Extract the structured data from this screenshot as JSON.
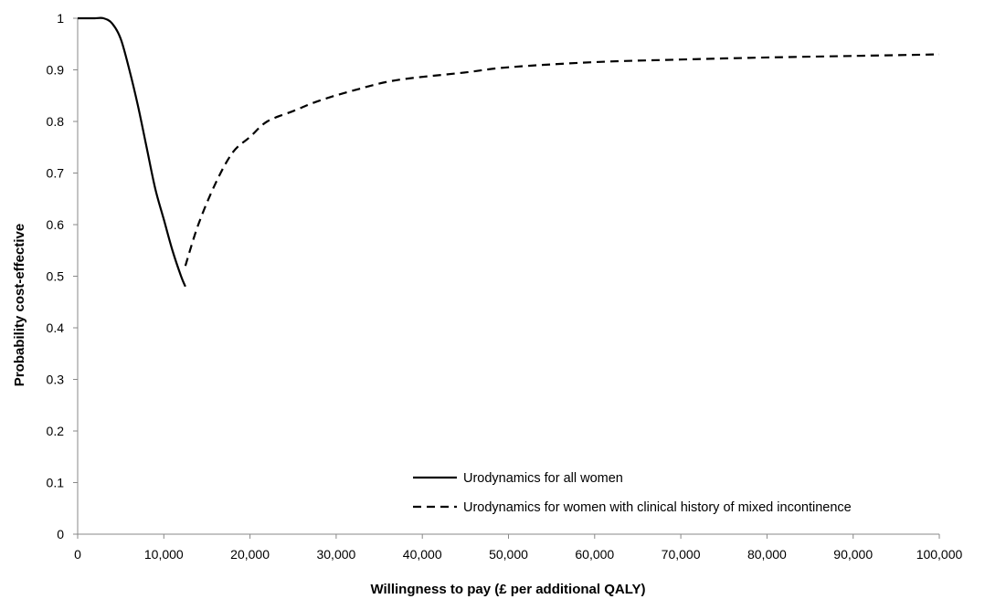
{
  "chart_data": {
    "type": "line",
    "xlabel": "Willingness to pay (£ per additional QALY)",
    "ylabel": "Probability cost-effective",
    "xlim": [
      0,
      100000
    ],
    "ylim": [
      0,
      1
    ],
    "x_ticks": [
      "0",
      "10,000",
      "20,000",
      "30,000",
      "40,000",
      "50,000",
      "60,000",
      "70,000",
      "80,000",
      "90,000",
      "100,000"
    ],
    "y_ticks": [
      "0",
      "0.1",
      "0.2",
      "0.3",
      "0.4",
      "0.5",
      "0.6",
      "0.7",
      "0.8",
      "0.9",
      "1"
    ],
    "grid": false,
    "legend_position": "bottom-right",
    "series": [
      {
        "name": "Urodynamics for all women",
        "style": "solid",
        "color": "#000000",
        "points": [
          [
            0,
            1.0
          ],
          [
            1000,
            1.0
          ],
          [
            2000,
            1.0
          ],
          [
            3000,
            1.0
          ],
          [
            4000,
            0.99
          ],
          [
            5000,
            0.96
          ],
          [
            6000,
            0.9
          ],
          [
            7000,
            0.83
          ],
          [
            8000,
            0.75
          ],
          [
            9000,
            0.67
          ],
          [
            10000,
            0.61
          ],
          [
            11000,
            0.55
          ],
          [
            12000,
            0.5
          ],
          [
            12500,
            0.48
          ]
        ]
      },
      {
        "name": "Urodynamics for women with clinical history of mixed incontinence",
        "style": "dashed",
        "color": "#000000",
        "points": [
          [
            12500,
            0.52
          ],
          [
            14000,
            0.6
          ],
          [
            16000,
            0.68
          ],
          [
            18000,
            0.74
          ],
          [
            20000,
            0.77
          ],
          [
            22000,
            0.8
          ],
          [
            25000,
            0.82
          ],
          [
            28000,
            0.84
          ],
          [
            32000,
            0.86
          ],
          [
            37000,
            0.88
          ],
          [
            45000,
            0.895
          ],
          [
            50000,
            0.905
          ],
          [
            60000,
            0.915
          ],
          [
            70000,
            0.92
          ],
          [
            80000,
            0.924
          ],
          [
            90000,
            0.927
          ],
          [
            100000,
            0.93
          ]
        ]
      }
    ]
  }
}
